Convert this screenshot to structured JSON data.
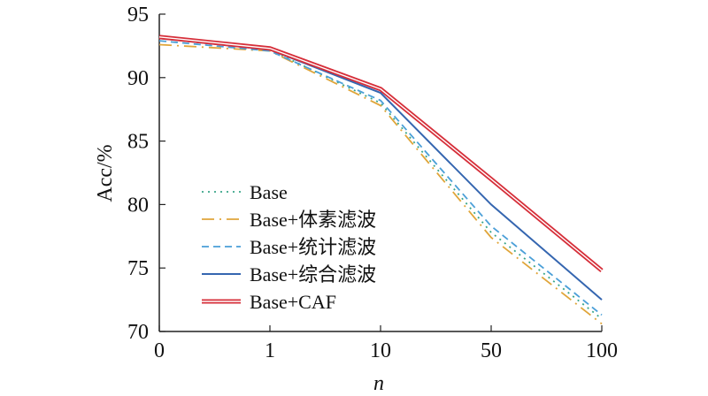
{
  "chart_data": {
    "type": "line",
    "categories": [
      "0",
      "1",
      "10",
      "50",
      "100"
    ],
    "xlabel": "n",
    "ylabel": "Acc/%",
    "ylim": [
      70,
      95
    ],
    "yticks": [
      70,
      75,
      80,
      85,
      90,
      95
    ],
    "grid": false,
    "legend_position": "bottom-left",
    "series": [
      {
        "name": "Base",
        "values": [
          93.1,
          92.2,
          88.0,
          77.8,
          71.0
        ],
        "color": "#3aa58a",
        "style": "dotted"
      },
      {
        "name": "Base+体素滤波",
        "values": [
          92.6,
          92.1,
          87.8,
          77.4,
          70.6
        ],
        "color": "#e0a53a",
        "style": "dashdot"
      },
      {
        "name": "Base+统计滤波",
        "values": [
          92.9,
          92.1,
          88.2,
          78.3,
          71.3
        ],
        "color": "#4a9fd8",
        "style": "dashed"
      },
      {
        "name": "Base+综合滤波",
        "values": [
          93.1,
          92.2,
          88.8,
          80.0,
          72.5
        ],
        "color": "#3566b0",
        "style": "solid"
      },
      {
        "name": "Base+CAF",
        "values": [
          93.2,
          92.3,
          89.1,
          82.0,
          74.8
        ],
        "color": "#d62f3a",
        "style": "double"
      }
    ]
  }
}
